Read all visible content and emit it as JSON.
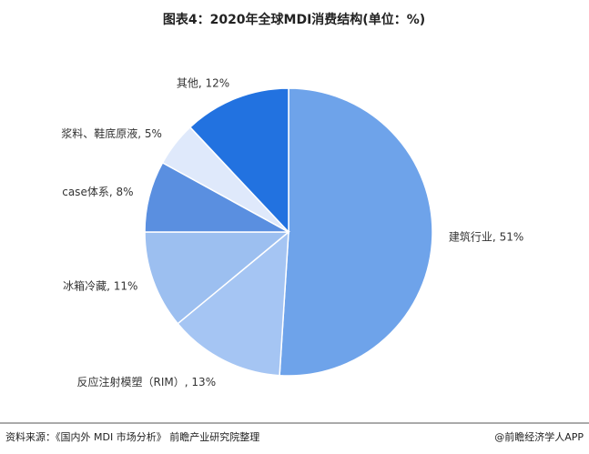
{
  "chart_data": {
    "type": "pie",
    "title": "图表4：2020年全球MDI消费结构(单位：%)",
    "categories": [
      "建筑行业",
      "反应注射模塑（RIM）",
      "冰箱冷藏",
      "case体系",
      "浆料、鞋底原液",
      "其他"
    ],
    "values": [
      51,
      13,
      11,
      8,
      5,
      12
    ],
    "value_labels": [
      "51%",
      "13%",
      "11%",
      "8%",
      "5%",
      "12%"
    ],
    "colors": [
      "#6ea3ea",
      "#a5c5f3",
      "#9cbff0",
      "#5a8fe0",
      "#dfe9fb",
      "#2272e0"
    ]
  },
  "footer": {
    "source": "资料来源：《国内外 MDI 市场分析》 前瞻产业研究院整理",
    "credit": "@前瞻经济学人APP"
  }
}
